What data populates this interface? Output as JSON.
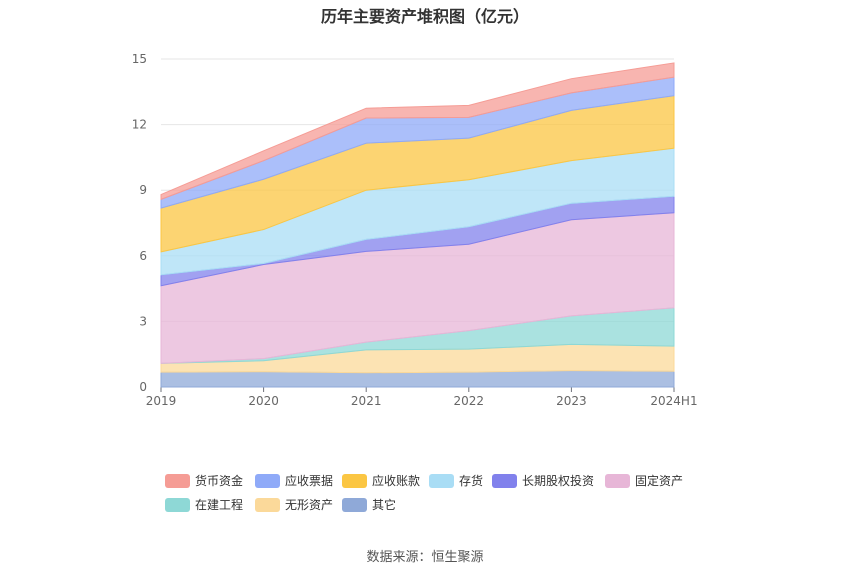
{
  "title": "历年主要资产堆积图（亿元）",
  "source": "数据来源：恒生聚源",
  "chart_data": {
    "type": "area",
    "stacked": true,
    "x": [
      "2019",
      "2020",
      "2021",
      "2022",
      "2023",
      "2024H1"
    ],
    "ylim": [
      0,
      15
    ],
    "yticks": [
      0,
      3,
      6,
      9,
      12,
      15
    ],
    "grid": true,
    "legend_position": "bottom",
    "series": [
      {
        "name": "其它",
        "color": "#8fa9d8",
        "values": [
          0.68,
          0.7,
          0.65,
          0.68,
          0.75,
          0.72
        ]
      },
      {
        "name": "无形资产",
        "color": "#fbd99a",
        "values": [
          0.4,
          0.5,
          1.05,
          1.05,
          1.2,
          1.15
        ]
      },
      {
        "name": "在建工程",
        "color": "#8ed8d6",
        "values": [
          0.0,
          0.1,
          0.35,
          0.85,
          1.3,
          1.75
        ]
      },
      {
        "name": "固定资产",
        "color": "#e7b6d7",
        "values": [
          3.55,
          4.3,
          4.15,
          3.95,
          4.4,
          4.35
        ]
      },
      {
        "name": "长期股权投资",
        "color": "#8181ec",
        "values": [
          0.5,
          0.05,
          0.55,
          0.8,
          0.75,
          0.75
        ]
      },
      {
        "name": "存货",
        "color": "#a9ddf5",
        "values": [
          1.05,
          1.55,
          2.25,
          2.15,
          1.95,
          2.2
        ]
      },
      {
        "name": "应收账款",
        "color": "#fbc643",
        "values": [
          2.0,
          2.3,
          2.15,
          1.9,
          2.3,
          2.4
        ]
      },
      {
        "name": "应收票据",
        "color": "#8faaf8",
        "values": [
          0.4,
          0.85,
          1.15,
          0.95,
          0.8,
          0.85
        ]
      },
      {
        "name": "货币资金",
        "color": "#f59c95",
        "values": [
          0.22,
          0.45,
          0.45,
          0.55,
          0.65,
          0.65
        ]
      }
    ],
    "legend_order": [
      "货币资金",
      "应收票据",
      "应收账款",
      "存货",
      "长期股权投资",
      "固定资产",
      "在建工程",
      "无形资产",
      "其它"
    ]
  }
}
